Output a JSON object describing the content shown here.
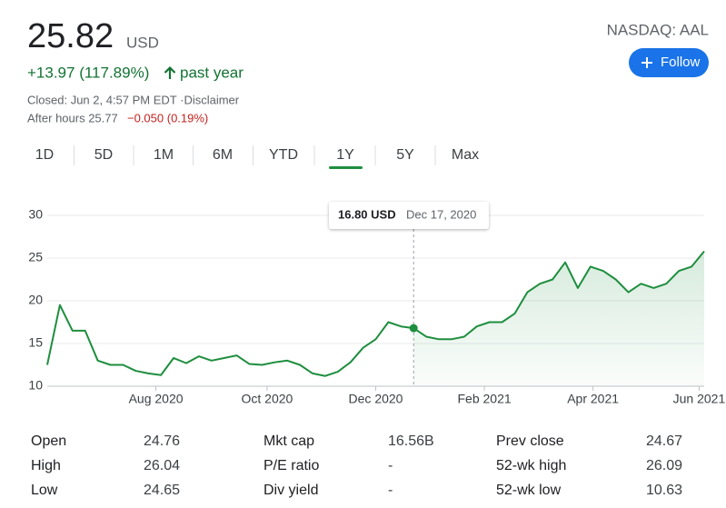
{
  "header": {
    "price": "25.82",
    "currency": "USD",
    "change": "+13.97 (117.89%)",
    "period": "past year",
    "closed": "Closed: Jun 2, 4:57 PM EDT ·Disclaimer",
    "after_hours_label": "After hours 25.77",
    "after_hours_change": "−0.050 (0.19%)",
    "exchange": "NASDAQ: AAL",
    "follow": "Follow"
  },
  "tabs": [
    "1D",
    "5D",
    "1M",
    "6M",
    "YTD",
    "1Y",
    "5Y",
    "Max"
  ],
  "chart_data": {
    "type": "line",
    "color": "#1e8e3e",
    "grid": true,
    "values": [
      12.5,
      19.5,
      16.5,
      16.5,
      13,
      12.5,
      12.5,
      11.8,
      11.5,
      11.3,
      13.3,
      12.7,
      13.5,
      13,
      13.3,
      13.6,
      12.6,
      12.5,
      12.8,
      13,
      12.5,
      11.5,
      11.2,
      11.7,
      12.8,
      14.5,
      15.5,
      17.5,
      17,
      16.8,
      15.8,
      15.5,
      15.5,
      15.8,
      17,
      17.5,
      17.5,
      18.5,
      21,
      22,
      22.5,
      24.5,
      21.5,
      24,
      23.5,
      22.5,
      21,
      22,
      21.5,
      22,
      23.5,
      24,
      25.8
    ],
    "xlim": [
      0,
      52
    ],
    "xticks": [
      {
        "value": 8.6,
        "label": "Aug 2020"
      },
      {
        "value": 17.4,
        "label": "Oct 2020"
      },
      {
        "value": 26,
        "label": "Dec 2020"
      },
      {
        "value": 34.6,
        "label": "Feb 2021"
      },
      {
        "value": 43.2,
        "label": "Apr 2021"
      },
      {
        "value": 51.6,
        "label": "Jun 2021"
      }
    ],
    "ylim": [
      10,
      30
    ],
    "yticks": [
      10,
      15,
      20,
      25,
      30
    ],
    "tooltip": {
      "value": "16.80 USD",
      "date": "Dec 17, 2020"
    }
  },
  "stats": [
    [
      [
        "Open",
        "24.76"
      ],
      [
        "Mkt cap",
        "16.56B"
      ],
      [
        "Prev close",
        "24.67"
      ]
    ],
    [
      [
        "High",
        "26.04"
      ],
      [
        "P/E ratio",
        "-"
      ],
      [
        "52-wk high",
        "26.09"
      ]
    ],
    [
      [
        "Low",
        "24.65"
      ],
      [
        "Div yield",
        "-"
      ],
      [
        "52-wk low",
        "10.63"
      ]
    ]
  ]
}
